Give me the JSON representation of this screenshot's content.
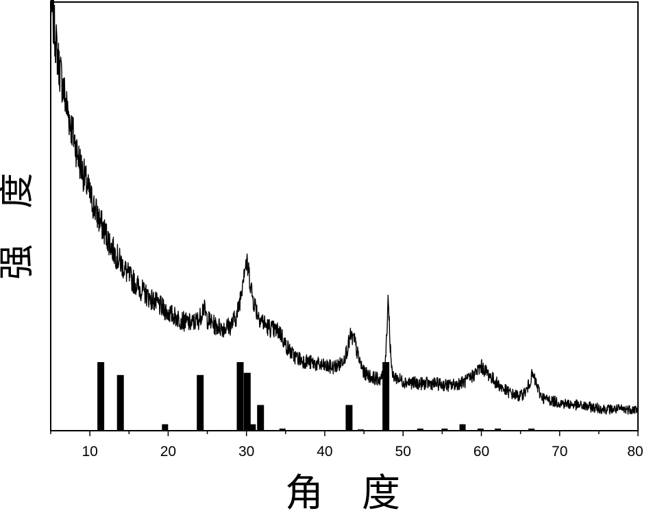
{
  "chart_data": {
    "type": "line",
    "title": "",
    "xlabel": "角　度",
    "ylabel": "强　度",
    "xlim": [
      5,
      80
    ],
    "ylim": [
      0,
      100
    ],
    "x_ticks": [
      10,
      20,
      30,
      40,
      50,
      60,
      70,
      80
    ],
    "x_tick_labels": [
      "10",
      "20",
      "30",
      "40",
      "50",
      "60",
      "70",
      "80"
    ],
    "y_ticks_shown": false,
    "grid": false,
    "legend": "none",
    "colors": {
      "line": "#000000",
      "bars": "#000000",
      "frame": "#000000"
    },
    "series": [
      {
        "kind": "line",
        "points": [
          [
            5.0,
            100
          ],
          [
            5.3,
            96
          ],
          [
            5.7,
            90
          ],
          [
            6.0,
            86
          ],
          [
            6.5,
            81
          ],
          [
            7.0,
            76
          ],
          [
            7.5,
            72
          ],
          [
            8.0,
            68
          ],
          [
            8.5,
            64
          ],
          [
            9.0,
            61
          ],
          [
            10.0,
            55
          ],
          [
            11.0,
            50
          ],
          [
            12.0,
            46
          ],
          [
            13.0,
            42
          ],
          [
            14.0,
            39
          ],
          [
            15.0,
            36
          ],
          [
            16.0,
            34
          ],
          [
            17.0,
            32
          ],
          [
            18.0,
            30.5
          ],
          [
            19.0,
            29
          ],
          [
            20.0,
            27.5
          ],
          [
            21.0,
            26.5
          ],
          [
            22.0,
            25.5
          ],
          [
            23.0,
            25
          ],
          [
            24.0,
            26
          ],
          [
            24.5,
            29
          ],
          [
            25.0,
            26
          ],
          [
            26.0,
            24.5
          ],
          [
            27.0,
            24
          ],
          [
            28.0,
            24.5
          ],
          [
            28.8,
            27
          ],
          [
            29.3,
            32
          ],
          [
            29.7,
            38
          ],
          [
            30.0,
            39
          ],
          [
            30.3,
            37
          ],
          [
            30.8,
            31
          ],
          [
            31.5,
            27
          ],
          [
            32.5,
            24.5
          ],
          [
            33.5,
            23.5
          ],
          [
            34.3,
            23
          ],
          [
            35.0,
            20
          ],
          [
            36.0,
            17.5
          ],
          [
            37.0,
            16.5
          ],
          [
            38.0,
            16
          ],
          [
            39.0,
            15.5
          ],
          [
            40.0,
            15
          ],
          [
            41.0,
            14.8
          ],
          [
            42.0,
            15.5
          ],
          [
            42.7,
            18
          ],
          [
            43.3,
            22
          ],
          [
            43.8,
            21
          ],
          [
            44.3,
            17
          ],
          [
            45.0,
            13.5
          ],
          [
            46.0,
            12.5
          ],
          [
            47.0,
            12
          ],
          [
            47.6,
            13
          ],
          [
            47.9,
            22
          ],
          [
            48.1,
            32
          ],
          [
            48.3,
            22
          ],
          [
            48.6,
            13
          ],
          [
            49.5,
            12
          ],
          [
            50.0,
            11.5
          ],
          [
            52.0,
            11
          ],
          [
            54.0,
            11
          ],
          [
            56.0,
            10.5
          ],
          [
            58.0,
            11.5
          ],
          [
            59.0,
            13
          ],
          [
            60.0,
            15
          ],
          [
            61.0,
            13
          ],
          [
            62.0,
            11
          ],
          [
            63.0,
            9.5
          ],
          [
            64.0,
            8.5
          ],
          [
            65.0,
            8
          ],
          [
            65.8,
            9.5
          ],
          [
            66.5,
            13
          ],
          [
            67.0,
            11
          ],
          [
            67.5,
            8.5
          ],
          [
            68.0,
            7.5
          ],
          [
            69.0,
            7
          ],
          [
            70.0,
            6.5
          ],
          [
            72.0,
            6
          ],
          [
            74.0,
            5.5
          ],
          [
            76.0,
            5
          ],
          [
            78.0,
            5
          ],
          [
            80.0,
            5
          ]
        ]
      },
      {
        "kind": "reference-bars",
        "bars": [
          [
            11.4,
            16
          ],
          [
            13.9,
            13
          ],
          [
            19.6,
            1.5
          ],
          [
            24.1,
            13
          ],
          [
            29.2,
            16
          ],
          [
            30.1,
            13.5
          ],
          [
            30.8,
            1.5
          ],
          [
            31.8,
            6
          ],
          [
            34.6,
            0.5
          ],
          [
            43.1,
            6
          ],
          [
            44.6,
            0.3
          ],
          [
            47.8,
            16
          ],
          [
            52.2,
            0.5
          ],
          [
            55.3,
            0.5
          ],
          [
            57.6,
            1.5
          ],
          [
            59.9,
            0.5
          ],
          [
            62.1,
            0.5
          ],
          [
            66.4,
            0.5
          ]
        ]
      }
    ]
  }
}
